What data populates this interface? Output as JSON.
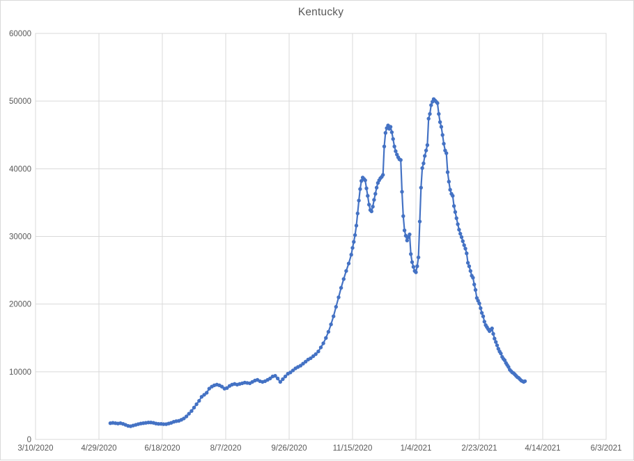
{
  "chart_data": {
    "type": "line",
    "title": "Kentucky",
    "xlabel": "",
    "ylabel": "",
    "x_ticks": [
      "3/10/2020",
      "4/29/2020",
      "6/18/2020",
      "8/7/2020",
      "9/26/2020",
      "11/15/2020",
      "1/4/2021",
      "2/23/2021",
      "4/14/2021",
      "6/3/2021"
    ],
    "y_ticks": [
      "0",
      "10000",
      "20000",
      "30000",
      "40000",
      "50000",
      "60000"
    ],
    "ylim": [
      0,
      60000
    ],
    "xlim": [
      "3/10/2020",
      "6/3/2021"
    ],
    "grid": true,
    "legend": "none",
    "colors": {
      "series": "#4472C4",
      "gridline": "#D9D9D9",
      "axis_text": "#595959",
      "title_text": "#595959",
      "chart_border": "#D9D9D9",
      "background": "#FFFFFF"
    },
    "series_name": "Kentucky",
    "points": [
      [
        "5/8/2020",
        2400
      ],
      [
        "5/10/2020",
        2450
      ],
      [
        "5/12/2020",
        2400
      ],
      [
        "5/14/2020",
        2350
      ],
      [
        "5/16/2020",
        2400
      ],
      [
        "5/18/2020",
        2300
      ],
      [
        "5/20/2020",
        2150
      ],
      [
        "5/22/2020",
        2000
      ],
      [
        "5/24/2020",
        1950
      ],
      [
        "5/26/2020",
        2050
      ],
      [
        "5/28/2020",
        2150
      ],
      [
        "5/30/2020",
        2250
      ],
      [
        "6/1/2020",
        2350
      ],
      [
        "6/3/2020",
        2400
      ],
      [
        "6/5/2020",
        2450
      ],
      [
        "6/7/2020",
        2500
      ],
      [
        "6/9/2020",
        2500
      ],
      [
        "6/11/2020",
        2450
      ],
      [
        "6/13/2020",
        2350
      ],
      [
        "6/15/2020",
        2300
      ],
      [
        "6/17/2020",
        2300
      ],
      [
        "6/19/2020",
        2250
      ],
      [
        "6/21/2020",
        2250
      ],
      [
        "6/23/2020",
        2350
      ],
      [
        "6/25/2020",
        2450
      ],
      [
        "6/27/2020",
        2600
      ],
      [
        "6/29/2020",
        2700
      ],
      [
        "7/1/2020",
        2750
      ],
      [
        "7/3/2020",
        2900
      ],
      [
        "7/5/2020",
        3100
      ],
      [
        "7/7/2020",
        3400
      ],
      [
        "7/9/2020",
        3800
      ],
      [
        "7/11/2020",
        4200
      ],
      [
        "7/13/2020",
        4700
      ],
      [
        "7/15/2020",
        5200
      ],
      [
        "7/17/2020",
        5700
      ],
      [
        "7/19/2020",
        6300
      ],
      [
        "7/21/2020",
        6600
      ],
      [
        "7/23/2020",
        6900
      ],
      [
        "7/25/2020",
        7500
      ],
      [
        "7/27/2020",
        7800
      ],
      [
        "7/29/2020",
        8000
      ],
      [
        "7/31/2020",
        8100
      ],
      [
        "8/2/2020",
        8000
      ],
      [
        "8/4/2020",
        7800
      ],
      [
        "8/6/2020",
        7500
      ],
      [
        "8/8/2020",
        7600
      ],
      [
        "8/10/2020",
        7900
      ],
      [
        "8/12/2020",
        8100
      ],
      [
        "8/14/2020",
        8200
      ],
      [
        "8/16/2020",
        8100
      ],
      [
        "8/18/2020",
        8200
      ],
      [
        "8/20/2020",
        8300
      ],
      [
        "8/22/2020",
        8400
      ],
      [
        "8/24/2020",
        8350
      ],
      [
        "8/26/2020",
        8300
      ],
      [
        "8/28/2020",
        8500
      ],
      [
        "8/30/2020",
        8700
      ],
      [
        "9/1/2020",
        8800
      ],
      [
        "9/3/2020",
        8600
      ],
      [
        "9/5/2020",
        8500
      ],
      [
        "9/7/2020",
        8600
      ],
      [
        "9/9/2020",
        8800
      ],
      [
        "9/11/2020",
        9000
      ],
      [
        "9/13/2020",
        9300
      ],
      [
        "9/15/2020",
        9400
      ],
      [
        "9/17/2020",
        9000
      ],
      [
        "9/19/2020",
        8500
      ],
      [
        "9/21/2020",
        8900
      ],
      [
        "9/23/2020",
        9300
      ],
      [
        "9/25/2020",
        9700
      ],
      [
        "9/27/2020",
        9900
      ],
      [
        "9/29/2020",
        10200
      ],
      [
        "10/1/2020",
        10500
      ],
      [
        "10/3/2020",
        10700
      ],
      [
        "10/5/2020",
        10900
      ],
      [
        "10/7/2020",
        11200
      ],
      [
        "10/9/2020",
        11500
      ],
      [
        "10/11/2020",
        11800
      ],
      [
        "10/13/2020",
        12000
      ],
      [
        "10/15/2020",
        12300
      ],
      [
        "10/17/2020",
        12600
      ],
      [
        "10/19/2020",
        13000
      ],
      [
        "10/21/2020",
        13600
      ],
      [
        "10/23/2020",
        14200
      ],
      [
        "10/25/2020",
        15000
      ],
      [
        "10/27/2020",
        15900
      ],
      [
        "10/29/2020",
        17000
      ],
      [
        "10/31/2020",
        18200
      ],
      [
        "11/2/2020",
        19600
      ],
      [
        "11/4/2020",
        21000
      ],
      [
        "11/6/2020",
        22400
      ],
      [
        "11/8/2020",
        23700
      ],
      [
        "11/10/2020",
        24900
      ],
      [
        "11/12/2020",
        26000
      ],
      [
        "11/14/2020",
        27300
      ],
      [
        "11/15/2020",
        28300
      ],
      [
        "11/16/2020",
        29200
      ],
      [
        "11/17/2020",
        30200
      ],
      [
        "11/18/2020",
        31600
      ],
      [
        "11/19/2020",
        33400
      ],
      [
        "11/20/2020",
        35300
      ],
      [
        "11/21/2020",
        37000
      ],
      [
        "11/22/2020",
        38200
      ],
      [
        "11/23/2020",
        38700
      ],
      [
        "11/24/2020",
        38500
      ],
      [
        "11/25/2020",
        38300
      ],
      [
        "11/26/2020",
        37100
      ],
      [
        "11/27/2020",
        36000
      ],
      [
        "11/28/2020",
        34700
      ],
      [
        "11/29/2020",
        33900
      ],
      [
        "11/30/2020",
        33700
      ],
      [
        "12/1/2020",
        34400
      ],
      [
        "12/2/2020",
        35400
      ],
      [
        "12/3/2020",
        36300
      ],
      [
        "12/4/2020",
        37200
      ],
      [
        "12/5/2020",
        37900
      ],
      [
        "12/6/2020",
        38300
      ],
      [
        "12/7/2020",
        38600
      ],
      [
        "12/8/2020",
        38800
      ],
      [
        "12/9/2020",
        39100
      ],
      [
        "12/10/2020",
        43300
      ],
      [
        "12/11/2020",
        45300
      ],
      [
        "12/12/2020",
        46000
      ],
      [
        "12/13/2020",
        46400
      ],
      [
        "12/14/2020",
        45900
      ],
      [
        "12/15/2020",
        46200
      ],
      [
        "12/16/2020",
        45400
      ],
      [
        "12/17/2020",
        44400
      ],
      [
        "12/18/2020",
        43300
      ],
      [
        "12/19/2020",
        42600
      ],
      [
        "12/20/2020",
        42100
      ],
      [
        "12/21/2020",
        41700
      ],
      [
        "12/22/2020",
        41400
      ],
      [
        "12/23/2020",
        41300
      ],
      [
        "12/24/2020",
        36600
      ],
      [
        "12/25/2020",
        33000
      ],
      [
        "12/26/2020",
        30900
      ],
      [
        "12/27/2020",
        30100
      ],
      [
        "12/28/2020",
        29400
      ],
      [
        "12/29/2020",
        29900
      ],
      [
        "12/30/2020",
        30300
      ],
      [
        "12/31/2020",
        27400
      ],
      [
        "1/1/2021",
        26200
      ],
      [
        "1/2/2021",
        25500
      ],
      [
        "1/3/2021",
        24900
      ],
      [
        "1/4/2021",
        24700
      ],
      [
        "1/5/2021",
        25600
      ],
      [
        "1/6/2021",
        26900
      ],
      [
        "1/7/2021",
        32200
      ],
      [
        "1/8/2021",
        37200
      ],
      [
        "1/9/2021",
        40100
      ],
      [
        "1/10/2021",
        40800
      ],
      [
        "1/11/2021",
        41900
      ],
      [
        "1/12/2021",
        42700
      ],
      [
        "1/13/2021",
        43500
      ],
      [
        "1/14/2021",
        47400
      ],
      [
        "1/15/2021",
        48100
      ],
      [
        "1/16/2021",
        49400
      ],
      [
        "1/17/2021",
        49900
      ],
      [
        "1/18/2021",
        50300
      ],
      [
        "1/19/2021",
        50100
      ],
      [
        "1/20/2021",
        49900
      ],
      [
        "1/21/2021",
        49700
      ],
      [
        "1/22/2021",
        48100
      ],
      [
        "1/23/2021",
        46900
      ],
      [
        "1/24/2021",
        46200
      ],
      [
        "1/25/2021",
        45000
      ],
      [
        "1/26/2021",
        43700
      ],
      [
        "1/27/2021",
        42700
      ],
      [
        "1/28/2021",
        42300
      ],
      [
        "1/29/2021",
        39500
      ],
      [
        "1/30/2021",
        38100
      ],
      [
        "1/31/2021",
        36900
      ],
      [
        "2/1/2021",
        36300
      ],
      [
        "2/2/2021",
        36000
      ],
      [
        "2/3/2021",
        34500
      ],
      [
        "2/4/2021",
        33600
      ],
      [
        "2/5/2021",
        32700
      ],
      [
        "2/6/2021",
        31800
      ],
      [
        "2/7/2021",
        31000
      ],
      [
        "2/8/2021",
        30400
      ],
      [
        "2/9/2021",
        29900
      ],
      [
        "2/10/2021",
        29300
      ],
      [
        "2/11/2021",
        28700
      ],
      [
        "2/12/2021",
        28200
      ],
      [
        "2/13/2021",
        27500
      ],
      [
        "2/14/2021",
        26100
      ],
      [
        "2/15/2021",
        25600
      ],
      [
        "2/16/2021",
        24900
      ],
      [
        "2/17/2021",
        24200
      ],
      [
        "2/18/2021",
        23900
      ],
      [
        "2/19/2021",
        22900
      ],
      [
        "2/20/2021",
        22100
      ],
      [
        "2/21/2021",
        20900
      ],
      [
        "2/22/2021",
        20500
      ],
      [
        "2/23/2021",
        20100
      ],
      [
        "2/24/2021",
        19400
      ],
      [
        "2/25/2021",
        18700
      ],
      [
        "2/26/2021",
        18200
      ],
      [
        "2/27/2021",
        17400
      ],
      [
        "2/28/2021",
        16900
      ],
      [
        "3/1/2021",
        16600
      ],
      [
        "3/2/2021",
        16300
      ],
      [
        "3/3/2021",
        16000
      ],
      [
        "3/4/2021",
        16200
      ],
      [
        "3/5/2021",
        16400
      ],
      [
        "3/6/2021",
        15600
      ],
      [
        "3/7/2021",
        14900
      ],
      [
        "3/8/2021",
        14400
      ],
      [
        "3/9/2021",
        13900
      ],
      [
        "3/10/2021",
        13400
      ],
      [
        "3/11/2021",
        13000
      ],
      [
        "3/12/2021",
        12700
      ],
      [
        "3/13/2021",
        12200
      ],
      [
        "3/14/2021",
        11900
      ],
      [
        "3/15/2021",
        11700
      ],
      [
        "3/16/2021",
        11300
      ],
      [
        "3/17/2021",
        11000
      ],
      [
        "3/18/2021",
        10700
      ],
      [
        "3/19/2021",
        10300
      ],
      [
        "3/20/2021",
        10100
      ],
      [
        "3/21/2021",
        9900
      ],
      [
        "3/22/2021",
        9800
      ],
      [
        "3/23/2021",
        9600
      ],
      [
        "3/24/2021",
        9400
      ],
      [
        "3/25/2021",
        9200
      ],
      [
        "3/26/2021",
        9100
      ],
      [
        "3/27/2021",
        8900
      ],
      [
        "3/28/2021",
        8700
      ],
      [
        "3/29/2021",
        8600
      ],
      [
        "3/30/2021",
        8500
      ],
      [
        "3/31/2021",
        8600
      ]
    ]
  }
}
